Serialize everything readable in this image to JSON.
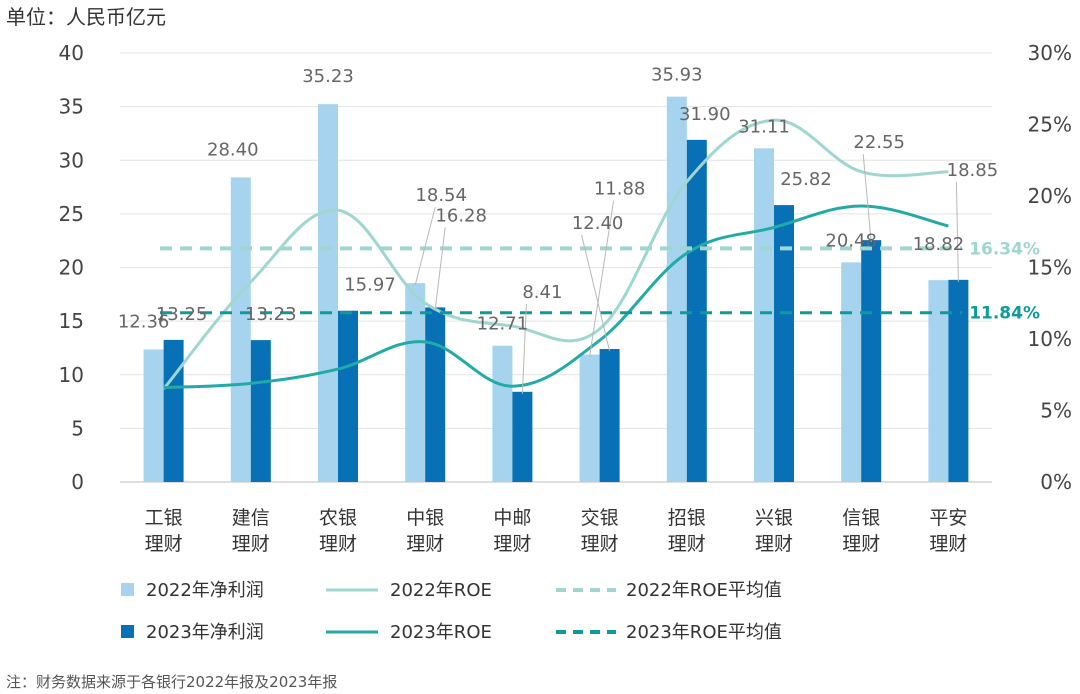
{
  "unit_label": "单位：人民币亿元",
  "note": "注：财务数据来源于各银行2022年报及2023年报",
  "colors": {
    "bar2022": "#a6d4ef",
    "bar2023": "#0870b5",
    "roe2022": "#9fd6cf",
    "roe2023": "#22aaa6",
    "avg2022": "#9fd6cf",
    "avg2023": "#0f9a9a",
    "grid": "#e3e3e3",
    "leader": "#b8b8b8"
  },
  "legend": {
    "bar2022": "2022年净利润",
    "bar2023": "2023年净利润",
    "roe2022": "2022年ROE",
    "roe2023": "2023年ROE",
    "avg2022": "2022年ROE平均值",
    "avg2023": "2023年ROE平均值"
  },
  "chart_data": {
    "type": "bar",
    "categories": [
      [
        "工银",
        "理财"
      ],
      [
        "建信",
        "理财"
      ],
      [
        "农银",
        "理财"
      ],
      [
        "中银",
        "理财"
      ],
      [
        "中邮",
        "理财"
      ],
      [
        "交银",
        "理财"
      ],
      [
        "招银",
        "理财"
      ],
      [
        "兴银",
        "理财"
      ],
      [
        "信银",
        "理财"
      ],
      [
        "平安",
        "理财"
      ]
    ],
    "left_axis": {
      "min": 0,
      "max": 40,
      "ticks": [
        "0",
        "5",
        "10",
        "15",
        "20",
        "25",
        "30",
        "35",
        "40"
      ]
    },
    "right_axis": {
      "min": 0,
      "max": 30,
      "ticks": [
        "0%",
        "5%",
        "10%",
        "15%",
        "20%",
        "25%",
        "30%"
      ]
    },
    "grid": true,
    "legend_position": "bottom",
    "series": [
      {
        "name": "2022年净利润",
        "kind": "bar",
        "axis": "left",
        "values": [
          12.36,
          28.4,
          35.23,
          18.54,
          12.71,
          11.88,
          35.93,
          31.11,
          20.48,
          18.82
        ],
        "labels": [
          "12.36",
          "28.40",
          "35.23",
          "18.54",
          "12.71",
          "11.88",
          "35.93",
          "31.11",
          "20.48",
          "18.82"
        ]
      },
      {
        "name": "2023年净利润",
        "kind": "bar",
        "axis": "left",
        "values": [
          13.25,
          13.23,
          15.97,
          16.28,
          8.41,
          12.4,
          31.9,
          25.82,
          22.55,
          18.85
        ],
        "labels": [
          "13.25",
          "13.23",
          "15.97",
          "16.28",
          "8.41",
          "12.40",
          "31.90",
          "25.82",
          "22.55",
          "18.85"
        ]
      },
      {
        "name": "2022年ROE",
        "kind": "line",
        "axis": "right",
        "values": [
          6.5,
          14.0,
          19.0,
          12.5,
          10.9,
          10.7,
          21.0,
          25.3,
          21.7,
          21.7
        ]
      },
      {
        "name": "2023年ROE",
        "kind": "line",
        "axis": "right",
        "values": [
          6.6,
          6.9,
          7.9,
          9.8,
          6.7,
          9.9,
          16.0,
          17.8,
          19.3,
          17.9
        ]
      },
      {
        "name": "2022年ROE平均值",
        "kind": "hline",
        "axis": "right",
        "value": 16.34,
        "label": "16.34%"
      },
      {
        "name": "2023年ROE平均值",
        "kind": "hline",
        "axis": "right",
        "value": 11.84,
        "label": "11.84%"
      }
    ]
  }
}
